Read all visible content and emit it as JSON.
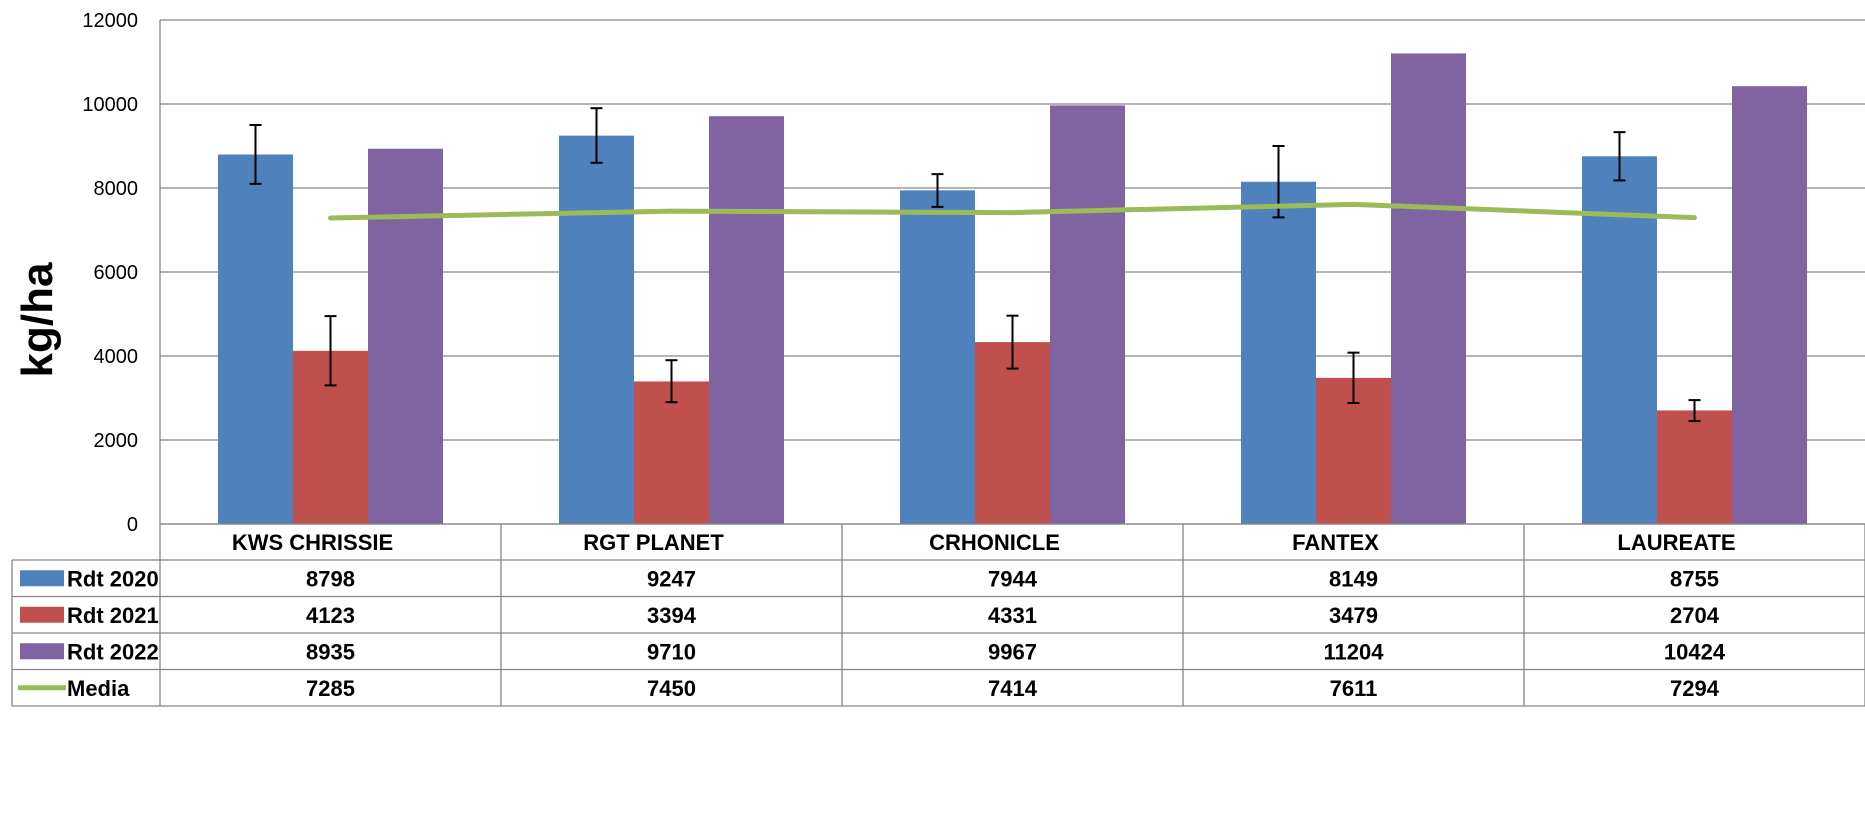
{
  "chart_data": {
    "type": "bar",
    "ylabel": "kg/ha",
    "ylim": [
      0,
      12000
    ],
    "yticks": [
      0,
      2000,
      4000,
      6000,
      8000,
      10000,
      12000
    ],
    "grid": true,
    "legend": "data-table",
    "categories": [
      "KWS CHRISSIE",
      "RGT PLANET",
      "CRHONICLE",
      "FANTEX",
      "LAUREATE"
    ],
    "series": [
      {
        "name": "Rdt 2020",
        "kind": "bar",
        "color": "#4F81BD",
        "values": [
          8798,
          9247,
          7944,
          8149,
          8755
        ],
        "error_low": [
          8100,
          8600,
          7550,
          7300,
          8180
        ],
        "error_high": [
          9500,
          9900,
          8330,
          9000,
          9330
        ]
      },
      {
        "name": "Rdt 2021",
        "kind": "bar",
        "color": "#C0504D",
        "values": [
          4123,
          3394,
          4331,
          3479,
          2704
        ],
        "error_low": [
          3300,
          2900,
          3700,
          2880,
          2450
        ],
        "error_high": [
          4950,
          3900,
          4960,
          4080,
          2950
        ]
      },
      {
        "name": "Rdt 2022",
        "kind": "bar",
        "color": "#8064A2",
        "values": [
          8935,
          9710,
          9967,
          11204,
          10424
        ]
      },
      {
        "name": "Media",
        "kind": "line",
        "color": "#9BBB59",
        "values": [
          7285,
          7450,
          7414,
          7611,
          7294
        ]
      }
    ]
  }
}
